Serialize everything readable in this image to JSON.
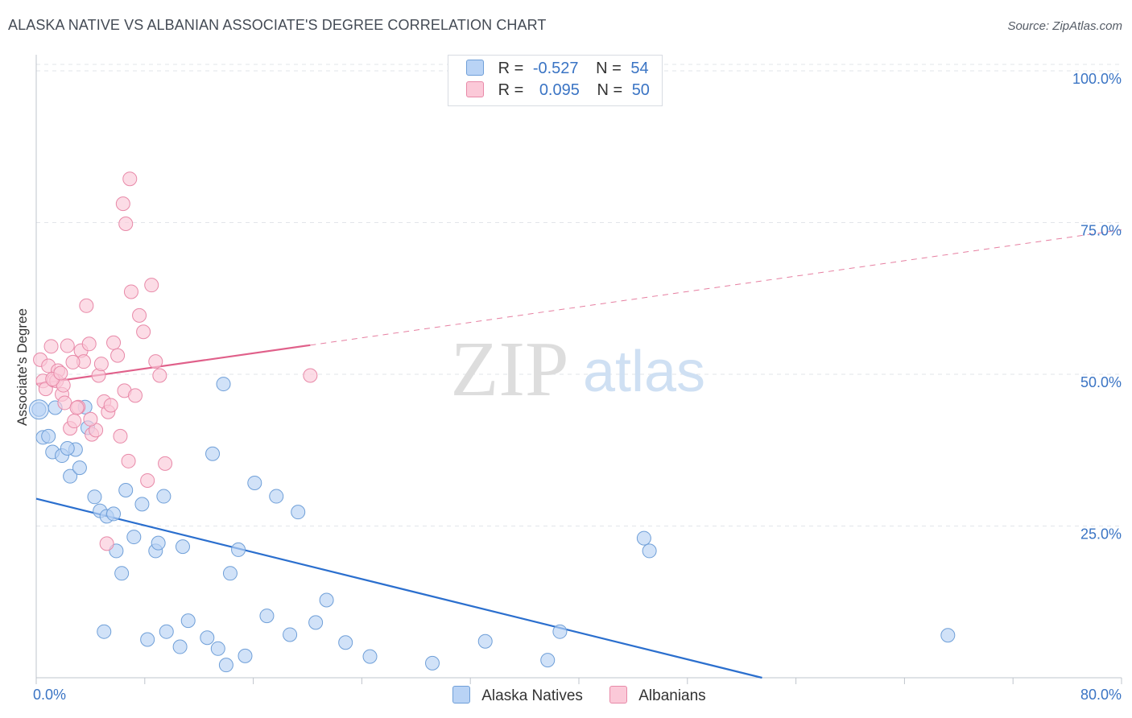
{
  "title": "ALASKA NATIVE VS ALBANIAN ASSOCIATE'S DEGREE CORRELATION CHART",
  "source": "Source: ZipAtlas.com",
  "watermark": {
    "zip": "ZIP",
    "atlas": "atlas"
  },
  "legend": {
    "rows": [
      {
        "r_label": "R =",
        "r_value": "-0.527",
        "n_label": "N =",
        "n_value": "54",
        "color": "#b9d3f5",
        "border": "#6f9fd8"
      },
      {
        "r_label": "R =",
        "r_value": "0.095",
        "n_label": "N =",
        "n_value": "50",
        "color": "#fbc9d8",
        "border": "#e889a8"
      }
    ]
  },
  "bottom_legend": {
    "items": [
      {
        "label": "Alaska Natives",
        "color": "#b9d3f5",
        "border": "#6f9fd8"
      },
      {
        "label": "Albanians",
        "color": "#fbc9d8",
        "border": "#e889a8"
      }
    ]
  },
  "chart_data": {
    "type": "scatter",
    "title": "ALASKA NATIVE VS ALBANIAN ASSOCIATE'S DEGREE CORRELATION CHART",
    "xlabel": "",
    "ylabel": "Associate's Degree",
    "xlim": [
      0,
      80
    ],
    "ylim": [
      0,
      100
    ],
    "x_tick_labels": [
      {
        "value": 0,
        "label": "0.0%"
      },
      {
        "value": 80,
        "label": "80.0%"
      }
    ],
    "y_tick_labels": [
      {
        "value": 25,
        "label": "25.0%"
      },
      {
        "value": 50,
        "label": "50.0%"
      },
      {
        "value": 75,
        "label": "75.0%"
      },
      {
        "value": 100,
        "label": "100.0%"
      }
    ],
    "grid": true,
    "series": [
      {
        "name": "Alaska Natives",
        "color": "#6f9fd8",
        "fill": "#b9d3f5",
        "r": -0.527,
        "n": 54,
        "trend": {
          "x0": 0,
          "y0": 29.5,
          "x1": 53.5,
          "y1": 0,
          "style": "solid",
          "line_color": "#2b6fce"
        },
        "points": [
          [
            0.2,
            44.2
          ],
          [
            0.5,
            39.6
          ],
          [
            0.9,
            39.8
          ],
          [
            1.2,
            37.2
          ],
          [
            1.4,
            44.5
          ],
          [
            1.9,
            36.6
          ],
          [
            2.5,
            33.2
          ],
          [
            2.9,
            37.6
          ],
          [
            3.2,
            34.6
          ],
          [
            3.6,
            44.6
          ],
          [
            3.8,
            41.2
          ],
          [
            2.3,
            37.8
          ],
          [
            4.3,
            29.8
          ],
          [
            4.7,
            27.5
          ],
          [
            5.2,
            26.6
          ],
          [
            5.7,
            27.0
          ],
          [
            5.9,
            20.9
          ],
          [
            6.3,
            17.2
          ],
          [
            6.6,
            30.9
          ],
          [
            7.2,
            23.2
          ],
          [
            7.8,
            28.6
          ],
          [
            8.8,
            20.9
          ],
          [
            9.0,
            22.2
          ],
          [
            9.4,
            29.9
          ],
          [
            10.8,
            21.6
          ],
          [
            13.0,
            36.9
          ],
          [
            13.8,
            48.4
          ],
          [
            14.3,
            17.2
          ],
          [
            14.9,
            21.1
          ],
          [
            16.1,
            32.1
          ],
          [
            17.7,
            29.9
          ],
          [
            19.3,
            27.3
          ],
          [
            5.0,
            7.6
          ],
          [
            8.2,
            6.3
          ],
          [
            9.6,
            7.6
          ],
          [
            10.6,
            5.1
          ],
          [
            11.2,
            9.4
          ],
          [
            12.6,
            6.6
          ],
          [
            13.4,
            4.8
          ],
          [
            14.0,
            2.1
          ],
          [
            15.4,
            3.6
          ],
          [
            17.0,
            10.2
          ],
          [
            18.7,
            7.1
          ],
          [
            20.6,
            9.1
          ],
          [
            21.4,
            12.8
          ],
          [
            22.8,
            5.8
          ],
          [
            24.6,
            3.5
          ],
          [
            29.2,
            2.4
          ],
          [
            33.1,
            6.0
          ],
          [
            37.7,
            2.9
          ],
          [
            38.6,
            7.6
          ],
          [
            44.8,
            23.0
          ],
          [
            45.2,
            20.9
          ],
          [
            67.2,
            7.0
          ]
        ]
      },
      {
        "name": "Albanians",
        "color": "#e889a8",
        "fill": "#fbc9d8",
        "r": 0.095,
        "n": 50,
        "trend": {
          "x0": 0,
          "y0": 48.4,
          "x1": 20.2,
          "y1": 54.8,
          "x2": 80,
          "y2": 73.8,
          "style": "solid-then-dashed",
          "line_color": "#e0608a"
        },
        "points": [
          [
            0.3,
            52.4
          ],
          [
            0.5,
            48.9
          ],
          [
            0.7,
            47.6
          ],
          [
            0.9,
            51.4
          ],
          [
            1.1,
            54.6
          ],
          [
            1.3,
            49.0
          ],
          [
            1.6,
            50.6
          ],
          [
            1.9,
            46.7
          ],
          [
            1.5,
            48.9
          ],
          [
            2.1,
            45.3
          ],
          [
            2.3,
            54.7
          ],
          [
            2.5,
            41.1
          ],
          [
            2.8,
            42.3
          ],
          [
            3.1,
            44.6
          ],
          [
            3.3,
            53.9
          ],
          [
            3.5,
            52.1
          ],
          [
            3.7,
            61.3
          ],
          [
            3.9,
            55.0
          ],
          [
            4.1,
            40.1
          ],
          [
            4.4,
            40.8
          ],
          [
            4.6,
            49.8
          ],
          [
            4.8,
            51.7
          ],
          [
            5.0,
            45.5
          ],
          [
            5.3,
            43.8
          ],
          [
            5.5,
            44.9
          ],
          [
            5.7,
            55.2
          ],
          [
            6.0,
            53.1
          ],
          [
            6.2,
            39.8
          ],
          [
            6.5,
            47.3
          ],
          [
            6.8,
            35.7
          ],
          [
            5.2,
            22.1
          ],
          [
            7.0,
            63.6
          ],
          [
            7.3,
            46.5
          ],
          [
            7.6,
            59.7
          ],
          [
            7.9,
            57.0
          ],
          [
            8.2,
            32.5
          ],
          [
            8.5,
            64.7
          ],
          [
            8.8,
            52.1
          ],
          [
            9.1,
            49.8
          ],
          [
            9.5,
            35.3
          ],
          [
            6.4,
            78.1
          ],
          [
            6.6,
            74.8
          ],
          [
            6.9,
            82.2
          ],
          [
            20.2,
            49.8
          ],
          [
            2.0,
            48.2
          ],
          [
            3.0,
            44.5
          ],
          [
            4.0,
            42.6
          ],
          [
            1.2,
            49.2
          ],
          [
            2.7,
            52.0
          ],
          [
            1.8,
            50.2
          ]
        ]
      }
    ]
  }
}
